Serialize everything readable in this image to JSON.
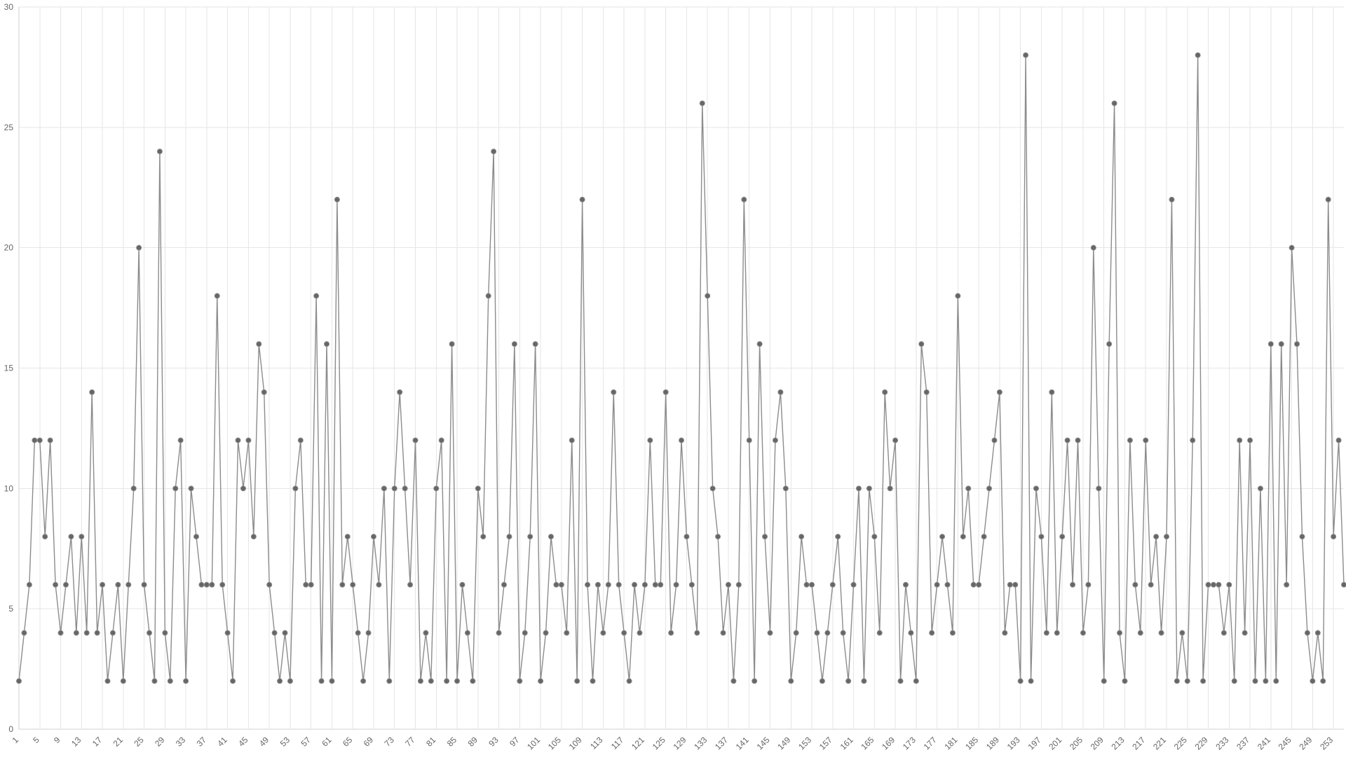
{
  "chart_data": {
    "type": "line",
    "title": "",
    "xlabel": "",
    "ylabel": "",
    "ylim": [
      0,
      30
    ],
    "yticks": [
      0,
      5,
      10,
      15,
      20,
      25,
      30
    ],
    "xlim": [
      1,
      256
    ],
    "xtick_step": 4,
    "grid": true,
    "legend": "none",
    "colors": {
      "line": "#8c8c8c",
      "point": "#666666",
      "grid": "#e6e6e6",
      "text": "#666666"
    },
    "series": [
      {
        "values": [
          2,
          4,
          6,
          12,
          12,
          8,
          12,
          6,
          4,
          6,
          8,
          4,
          8,
          4,
          14,
          4,
          6,
          2,
          4,
          6,
          2,
          6,
          10,
          20,
          6,
          4,
          2,
          24,
          4,
          2,
          10,
          12,
          2,
          10,
          8,
          6,
          6,
          6,
          18,
          6,
          4,
          2,
          12,
          10,
          12,
          8,
          16,
          14,
          6,
          4,
          2,
          4,
          2,
          10,
          12,
          6,
          6,
          18,
          2,
          16,
          2,
          22,
          6,
          8,
          6,
          4,
          2,
          4,
          8,
          6,
          10,
          2,
          10,
          14,
          10,
          6,
          12,
          2,
          4,
          2,
          10,
          12,
          2,
          16,
          2,
          6,
          4,
          2,
          10,
          8,
          18,
          24,
          4,
          6,
          8,
          16,
          2,
          4,
          8,
          16,
          2,
          4,
          8,
          6,
          6,
          4,
          12,
          2,
          22,
          6,
          2,
          6,
          4,
          6,
          14,
          6,
          4,
          2,
          6,
          4,
          6,
          12,
          6,
          6,
          14,
          4,
          6,
          12,
          8,
          6,
          4,
          26,
          18,
          10,
          8,
          4,
          6,
          2,
          6,
          22,
          12,
          2,
          16,
          8,
          4,
          12,
          14,
          10,
          2,
          4,
          8,
          6,
          6,
          4,
          2,
          4,
          6,
          8,
          4,
          2,
          6,
          10,
          2,
          10,
          8,
          4,
          14,
          10,
          12,
          2,
          6,
          4,
          2,
          16,
          14,
          4,
          6,
          8,
          6,
          4,
          18,
          8,
          10,
          6,
          6,
          8,
          10,
          12,
          14,
          4,
          6,
          6,
          2,
          28,
          2,
          10,
          8,
          4,
          14,
          4,
          8,
          12,
          6,
          12,
          4,
          6,
          20,
          10,
          2,
          16,
          26,
          4,
          2,
          12,
          6,
          4,
          12,
          6,
          8,
          4,
          8,
          22,
          2,
          4,
          2,
          12,
          28,
          2,
          6,
          6,
          6,
          4,
          6,
          2,
          12,
          4,
          12,
          2,
          10,
          2,
          16,
          2,
          16,
          6,
          20,
          16,
          8,
          4,
          2,
          4,
          2,
          22,
          8,
          12,
          6
        ]
      }
    ]
  }
}
